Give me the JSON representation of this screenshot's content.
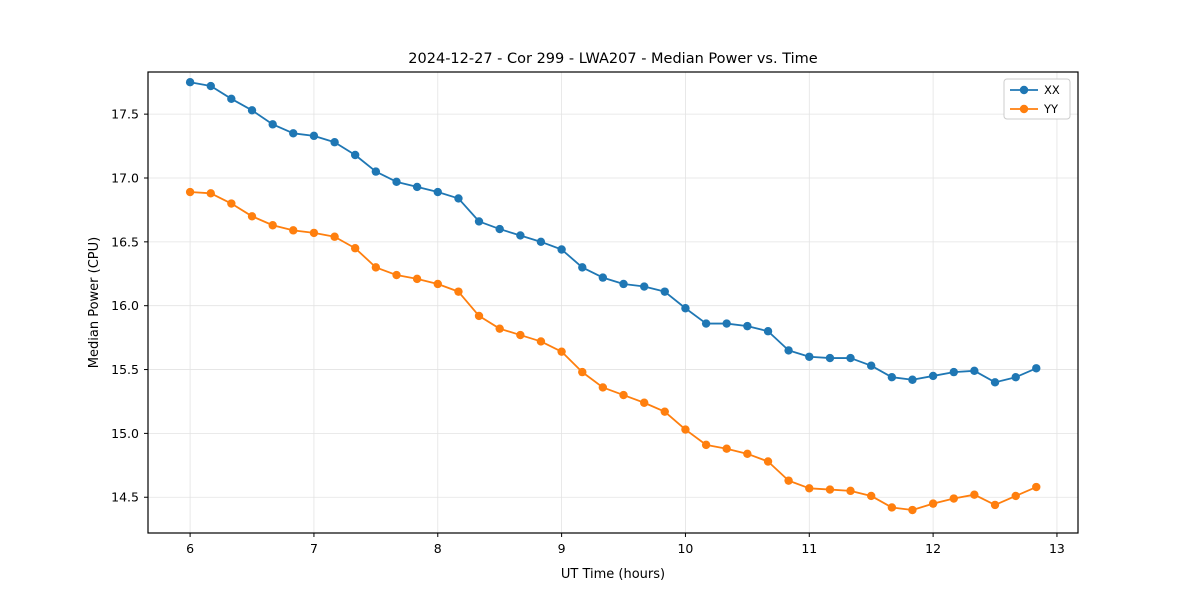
{
  "chart_data": {
    "type": "line",
    "title": "2024-12-27 - Cor 299 - LWA207 - Median Power vs. Time",
    "xlabel": "UT Time (hours)",
    "ylabel": "Median Power (CPU)",
    "xlim": [
      5.66,
      13.17
    ],
    "ylim": [
      14.22,
      17.83
    ],
    "xticks": [
      6,
      7,
      8,
      9,
      10,
      11,
      12,
      13
    ],
    "yticks": [
      14.5,
      15.0,
      15.5,
      16.0,
      16.5,
      17.0,
      17.5
    ],
    "xtick_decimals": 0,
    "ytick_decimals": 1,
    "grid": true,
    "grid_color": "#e3e3e3",
    "spine_color": "#000000",
    "legend_position": "upper right",
    "x": [
      6.0,
      6.167,
      6.333,
      6.5,
      6.667,
      6.833,
      7.0,
      7.167,
      7.333,
      7.5,
      7.667,
      7.833,
      8.0,
      8.167,
      8.333,
      8.5,
      8.667,
      8.833,
      9.0,
      9.167,
      9.333,
      9.5,
      9.667,
      9.833,
      10.0,
      10.167,
      10.333,
      10.5,
      10.667,
      10.833,
      11.0,
      11.167,
      11.333,
      11.5,
      11.667,
      11.833,
      12.0,
      12.167,
      12.333,
      12.5,
      12.667,
      12.833
    ],
    "series": [
      {
        "name": "XX",
        "color": "#1f77b4",
        "values": [
          17.75,
          17.72,
          17.62,
          17.53,
          17.42,
          17.35,
          17.33,
          17.28,
          17.18,
          17.05,
          16.97,
          16.93,
          16.89,
          16.84,
          16.66,
          16.6,
          16.55,
          16.5,
          16.44,
          16.3,
          16.22,
          16.17,
          16.15,
          16.11,
          15.98,
          15.86,
          15.86,
          15.84,
          15.8,
          15.65,
          15.6,
          15.59,
          15.59,
          15.53,
          15.44,
          15.42,
          15.45,
          15.48,
          15.49,
          15.4,
          15.44,
          15.51
        ]
      },
      {
        "name": "YY",
        "color": "#ff7f0e",
        "values": [
          16.89,
          16.88,
          16.8,
          16.7,
          16.63,
          16.59,
          16.57,
          16.54,
          16.45,
          16.3,
          16.24,
          16.21,
          16.17,
          16.11,
          15.92,
          15.82,
          15.77,
          15.72,
          15.64,
          15.48,
          15.36,
          15.3,
          15.24,
          15.17,
          15.03,
          14.91,
          14.88,
          14.84,
          14.78,
          14.63,
          14.57,
          14.56,
          14.55,
          14.51,
          14.42,
          14.4,
          14.45,
          14.49,
          14.52,
          14.44,
          14.51,
          14.58
        ]
      }
    ]
  }
}
